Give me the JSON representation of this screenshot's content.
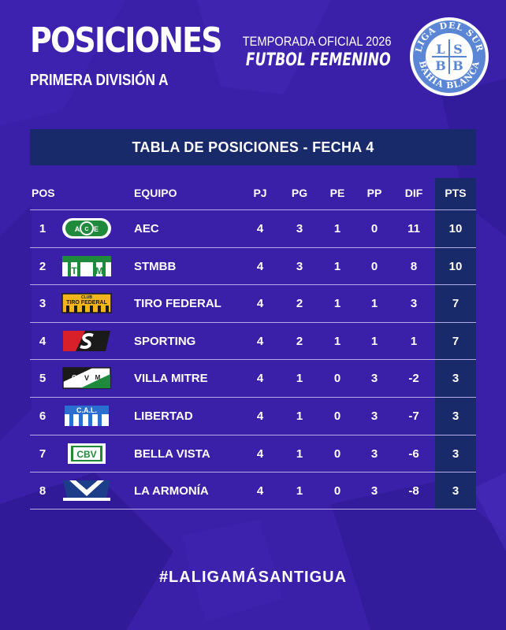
{
  "header": {
    "title": "POSICIONES",
    "subtitle": "PRIMERA DIVISIÓN A",
    "season": "TEMPORADA OFICIAL 2026",
    "category": "FUTBOL FEMENINO"
  },
  "logo": {
    "name": "LSBB",
    "top_text": "LIGA DEL SUR",
    "bottom_text": "BAHIA BLANCA",
    "letters": [
      "L",
      "S",
      "B",
      "B"
    ]
  },
  "table": {
    "title": "TABLA DE POSICIONES - FECHA 4",
    "columns": {
      "pos": "POS",
      "team": "EQUIPO",
      "pj": "PJ",
      "pg": "PG",
      "pe": "PE",
      "pp": "PP",
      "dif": "DIF",
      "pts": "PTS"
    },
    "rows": [
      {
        "pos": "1",
        "team": "AEC",
        "crest": "aec-crest",
        "pj": "4",
        "pg": "3",
        "pe": "1",
        "pp": "0",
        "dif": "11",
        "pts": "10"
      },
      {
        "pos": "2",
        "team": "STMBB",
        "crest": "stmbb-crest",
        "pj": "4",
        "pg": "3",
        "pe": "1",
        "pp": "0",
        "dif": "8",
        "pts": "10"
      },
      {
        "pos": "3",
        "team": "TIRO FEDERAL",
        "crest": "tiro-federal-crest",
        "pj": "4",
        "pg": "2",
        "pe": "1",
        "pp": "1",
        "dif": "3",
        "pts": "7"
      },
      {
        "pos": "4",
        "team": "SPORTING",
        "crest": "sporting-crest",
        "pj": "4",
        "pg": "2",
        "pe": "1",
        "pp": "1",
        "dif": "1",
        "pts": "7"
      },
      {
        "pos": "5",
        "team": "VILLA MITRE",
        "crest": "villa-mitre-crest",
        "pj": "4",
        "pg": "1",
        "pe": "0",
        "pp": "3",
        "dif": "-2",
        "pts": "3"
      },
      {
        "pos": "6",
        "team": "LIBERTAD",
        "crest": "libertad-crest",
        "pj": "4",
        "pg": "1",
        "pe": "0",
        "pp": "3",
        "dif": "-7",
        "pts": "3"
      },
      {
        "pos": "7",
        "team": "BELLA VISTA",
        "crest": "bella-vista-crest",
        "pj": "4",
        "pg": "1",
        "pe": "0",
        "pp": "3",
        "dif": "-6",
        "pts": "3"
      },
      {
        "pos": "8",
        "team": "LA ARMONÍA",
        "crest": "la-armonia-crest",
        "pj": "4",
        "pg": "1",
        "pe": "0",
        "pp": "3",
        "dif": "-8",
        "pts": "3"
      }
    ],
    "crest_text": {
      "aec": [
        "A",
        "E",
        "C"
      ],
      "stmbb": [
        "T",
        "M"
      ],
      "tiro_federal": [
        "CLUB",
        "TIRO FEDERAL"
      ],
      "villa_mitre": [
        "C",
        "V",
        "M"
      ],
      "libertad": "C.A.L.",
      "bella_vista": "CBV"
    }
  },
  "footer": {
    "hashtag": "#LALIGAMÁSANTIGUA"
  },
  "colors": {
    "background": "#3a1fa8",
    "panel": "#192a6b",
    "divider": "#b7abe6",
    "text": "#ffffff"
  }
}
